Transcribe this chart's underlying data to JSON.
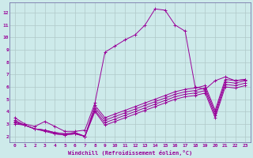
{
  "title": "",
  "xlabel": "Windchill (Refroidissement éolien,°C)",
  "ylabel": "",
  "bg_color": "#cdeaea",
  "grid_color": "#b0c8c8",
  "line_color": "#990099",
  "xlim": [
    -0.5,
    23.5
  ],
  "ylim": [
    1.5,
    12.8
  ],
  "xticks": [
    0,
    1,
    2,
    3,
    4,
    5,
    6,
    7,
    8,
    9,
    10,
    11,
    12,
    13,
    14,
    15,
    16,
    17,
    18,
    19,
    20,
    21,
    22,
    23
  ],
  "yticks": [
    2,
    3,
    4,
    5,
    6,
    7,
    8,
    9,
    10,
    11,
    12
  ],
  "figsize": [
    3.2,
    2.0
  ],
  "dpi": 100,
  "lines": [
    {
      "x": [
        0,
        1,
        2,
        3,
        4,
        5,
        6,
        7,
        8,
        9,
        10,
        11,
        12,
        13,
        14,
        15,
        16,
        17,
        18,
        19,
        20,
        21,
        22,
        23
      ],
      "y": [
        3.5,
        3.0,
        2.8,
        3.2,
        2.8,
        2.4,
        2.4,
        2.5,
        4.7,
        8.8,
        9.3,
        9.8,
        10.2,
        11.0,
        12.3,
        12.2,
        11.0,
        10.5,
        6.0,
        5.8,
        6.5,
        6.8,
        6.5,
        6.6
      ]
    },
    {
      "x": [
        0,
        1,
        2,
        3,
        4,
        5,
        6,
        7,
        8,
        9,
        10,
        11,
        12,
        13,
        14,
        15,
        16,
        17,
        18,
        19,
        20,
        21,
        22,
        23
      ],
      "y": [
        3.3,
        2.9,
        2.6,
        2.5,
        2.3,
        2.2,
        2.3,
        2.0,
        4.5,
        3.5,
        3.8,
        4.1,
        4.4,
        4.7,
        5.0,
        5.3,
        5.6,
        5.8,
        5.9,
        6.1,
        4.1,
        6.6,
        6.5,
        6.6
      ]
    },
    {
      "x": [
        0,
        1,
        2,
        3,
        4,
        5,
        6,
        7,
        8,
        9,
        10,
        11,
        12,
        13,
        14,
        15,
        16,
        17,
        18,
        19,
        20,
        21,
        22,
        23
      ],
      "y": [
        3.2,
        2.9,
        2.6,
        2.5,
        2.3,
        2.2,
        2.3,
        2.0,
        4.3,
        3.3,
        3.6,
        3.9,
        4.2,
        4.5,
        4.8,
        5.1,
        5.4,
        5.6,
        5.7,
        5.9,
        3.9,
        6.4,
        6.3,
        6.5
      ]
    },
    {
      "x": [
        0,
        1,
        2,
        3,
        4,
        5,
        6,
        7,
        8,
        9,
        10,
        11,
        12,
        13,
        14,
        15,
        16,
        17,
        18,
        19,
        20,
        21,
        22,
        23
      ],
      "y": [
        3.1,
        2.9,
        2.6,
        2.5,
        2.2,
        2.1,
        2.2,
        2.0,
        4.1,
        3.1,
        3.4,
        3.7,
        4.0,
        4.3,
        4.6,
        4.9,
        5.2,
        5.4,
        5.5,
        5.7,
        3.7,
        6.2,
        6.1,
        6.3
      ]
    },
    {
      "x": [
        0,
        1,
        2,
        3,
        4,
        5,
        6,
        7,
        8,
        9,
        10,
        11,
        12,
        13,
        14,
        15,
        16,
        17,
        18,
        19,
        20,
        21,
        22,
        23
      ],
      "y": [
        3.0,
        2.9,
        2.6,
        2.4,
        2.2,
        2.1,
        2.2,
        2.0,
        4.0,
        2.9,
        3.2,
        3.5,
        3.8,
        4.1,
        4.4,
        4.7,
        5.0,
        5.2,
        5.3,
        5.5,
        3.5,
        6.0,
        5.9,
        6.1
      ]
    }
  ]
}
